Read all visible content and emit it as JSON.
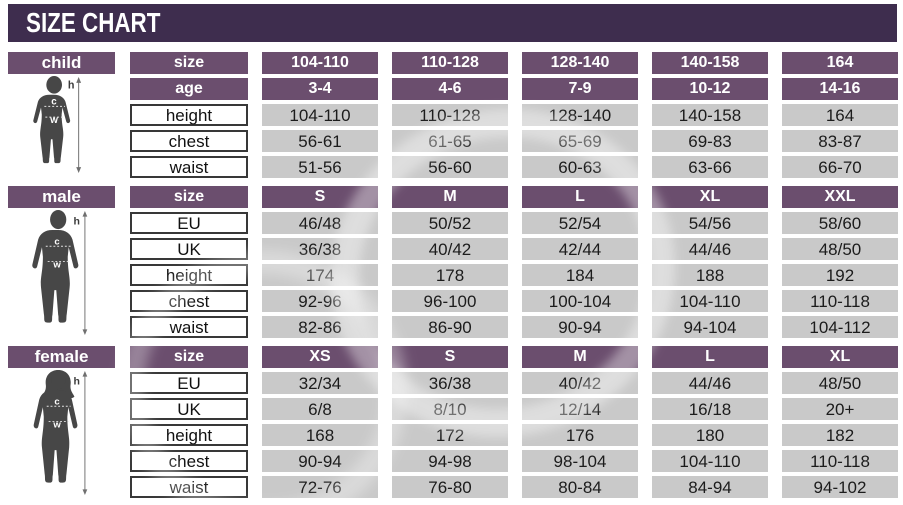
{
  "title": "SIZE CHART",
  "colors": {
    "banner": "#3e2d4e",
    "header_cell": "#6b4e6e",
    "value_cell": "#c9c9c9",
    "label_border": "#383838",
    "silhouette": "#474747"
  },
  "figure_labels": {
    "h": "h",
    "c": "c",
    "w": "w"
  },
  "chart_data": [
    {
      "type": "table",
      "section": "child",
      "rows": [
        {
          "style": "header",
          "label": "size",
          "values": [
            "104-110",
            "110-128",
            "128-140",
            "140-158",
            "164"
          ]
        },
        {
          "style": "header",
          "label": "age",
          "values": [
            "3-4",
            "4-6",
            "7-9",
            "10-12",
            "14-16"
          ]
        },
        {
          "style": "measure",
          "label": "height",
          "values": [
            "104-110",
            "110-128",
            "128-140",
            "140-158",
            "164"
          ]
        },
        {
          "style": "measure",
          "label": "chest",
          "values": [
            "56-61",
            "61-65",
            "65-69",
            "69-83",
            "83-87"
          ]
        },
        {
          "style": "measure",
          "label": "waist",
          "values": [
            "51-56",
            "56-60",
            "60-63",
            "63-66",
            "66-70"
          ]
        }
      ]
    },
    {
      "type": "table",
      "section": "male",
      "rows": [
        {
          "style": "header",
          "label": "size",
          "values": [
            "S",
            "M",
            "L",
            "XL",
            "XXL"
          ]
        },
        {
          "style": "measure",
          "label": "EU",
          "values": [
            "46/48",
            "50/52",
            "52/54",
            "54/56",
            "58/60"
          ]
        },
        {
          "style": "measure",
          "label": "UK",
          "values": [
            "36/38",
            "40/42",
            "42/44",
            "44/46",
            "48/50"
          ]
        },
        {
          "style": "measure",
          "label": "height",
          "values": [
            "174",
            "178",
            "184",
            "188",
            "192"
          ]
        },
        {
          "style": "measure",
          "label": "chest",
          "values": [
            "92-96",
            "96-100",
            "100-104",
            "104-110",
            "110-118"
          ]
        },
        {
          "style": "measure",
          "label": "waist",
          "values": [
            "82-86",
            "86-90",
            "90-94",
            "94-104",
            "104-112"
          ]
        }
      ]
    },
    {
      "type": "table",
      "section": "female",
      "rows": [
        {
          "style": "header",
          "label": "size",
          "values": [
            "XS",
            "S",
            "M",
            "L",
            "XL"
          ]
        },
        {
          "style": "measure",
          "label": "EU",
          "values": [
            "32/34",
            "36/38",
            "40/42",
            "44/46",
            "48/50"
          ]
        },
        {
          "style": "measure",
          "label": "UK",
          "values": [
            "6/8",
            "8/10",
            "12/14",
            "16/18",
            "20+"
          ]
        },
        {
          "style": "measure",
          "label": "height",
          "values": [
            "168",
            "172",
            "176",
            "180",
            "182"
          ]
        },
        {
          "style": "measure",
          "label": "chest",
          "values": [
            "90-94",
            "94-98",
            "98-104",
            "104-110",
            "110-118"
          ]
        },
        {
          "style": "measure",
          "label": "waist",
          "values": [
            "72-76",
            "76-80",
            "80-84",
            "84-94",
            "94-102"
          ]
        }
      ]
    }
  ]
}
